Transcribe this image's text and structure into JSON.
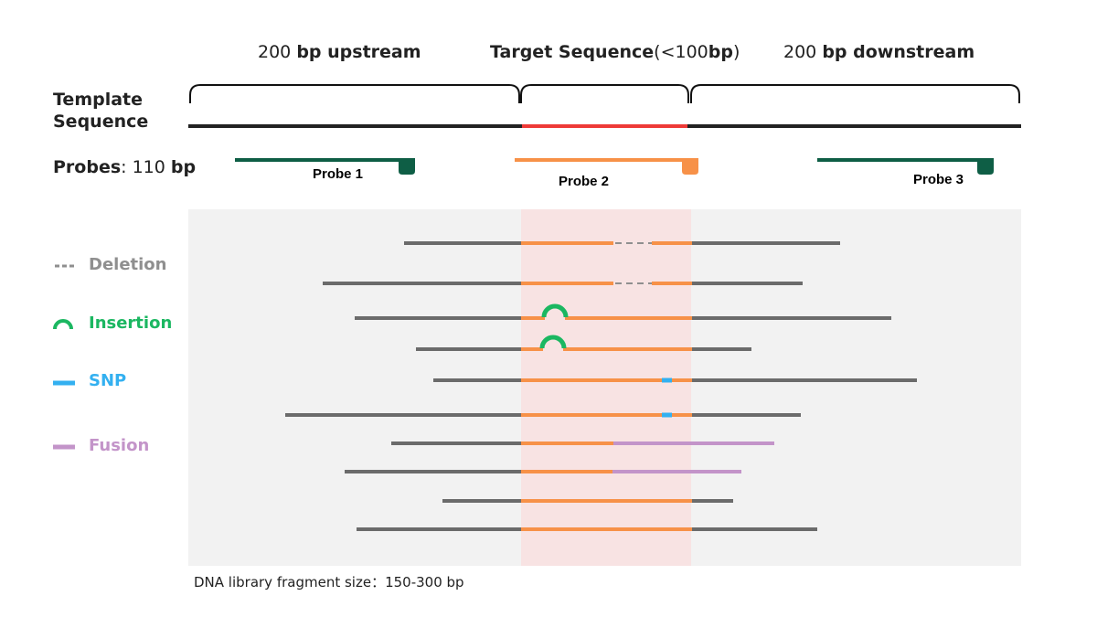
{
  "regions": {
    "upstream": {
      "num": "200",
      "bold": "bp upstream"
    },
    "target": {
      "bold1": "Target Sequence",
      "mid": "(<100",
      "bold2": "bp",
      "end": ")"
    },
    "downstream": {
      "num": "200",
      "bold": "bp downstream"
    }
  },
  "template_label": {
    "line1": "Template",
    "line2": "Sequence"
  },
  "probes_label": {
    "bold": "Probes",
    "rest": ": 110 ",
    "unit": "bp"
  },
  "probes": [
    {
      "label": "Probe 1",
      "color": "#0e5e45"
    },
    {
      "label": "Probe 2",
      "color": "#f79148"
    },
    {
      "label": "Probe 3",
      "color": "#0e5e45"
    }
  ],
  "legend": [
    {
      "label": "Deletion",
      "color": "#8f8f8f",
      "icon": "deletion-dash-icon"
    },
    {
      "label": "Insertion",
      "color": "#1bb761",
      "icon": "insertion-arc-icon"
    },
    {
      "label": "SNP",
      "color": "#33b0f0",
      "icon": "snp-bar-icon"
    },
    {
      "label": "Fusion",
      "color": "#c394c9",
      "icon": "fusion-bar-icon"
    }
  ],
  "footnote": "DNA library fragment size：150-300 bp",
  "colors": {
    "template": "#222222",
    "target": "#ee3a37",
    "read": "#6b6b6b",
    "target_read": "#f79148",
    "panel": "#f2f2f2",
    "target_band": "#f8e3e3"
  }
}
